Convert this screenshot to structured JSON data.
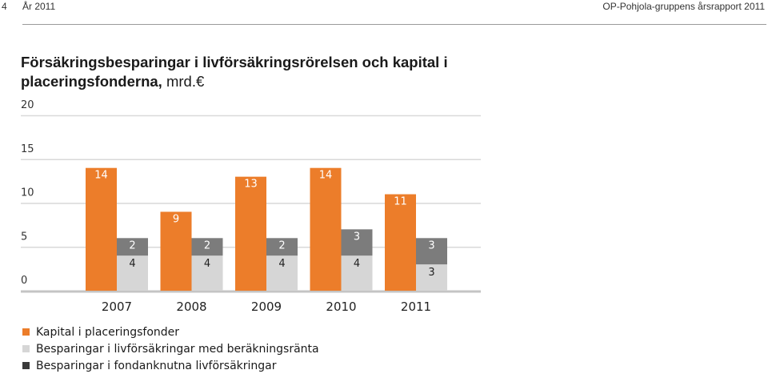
{
  "header": {
    "page_number": "4",
    "section": "År 2011",
    "report_title": "OP-Pohjola-gruppens årsrapport 2011"
  },
  "chart_title": {
    "main": "Försäkringsbesparingar i livförsäkringsrörelsen och kapital i placeringsfonderna,",
    "unit": "mrd.€"
  },
  "colors": {
    "orange": "#ec7d2a",
    "dark_grey": "#7c7c7c",
    "light_grey": "#d6d6d6",
    "legend_dark": "#3a3a3a",
    "axis_text": "#333333",
    "grid": "#d9d9d9"
  },
  "chart_data": {
    "type": "bar",
    "categories": [
      "2007",
      "2008",
      "2009",
      "2010",
      "2011"
    ],
    "series": [
      {
        "name": "Kapital i placeringsfonder",
        "values": [
          14,
          9,
          13,
          14,
          11
        ]
      },
      {
        "name": "Besparingar i livförsäkringar med beräkningsränta",
        "values": [
          4,
          4,
          4,
          4,
          3
        ]
      },
      {
        "name": "Besparingar i fondanknutna livförsäkringar",
        "values": [
          2,
          2,
          2,
          3,
          3
        ]
      }
    ],
    "stacking": "series 2 and 3 stacked (beräkningsränta at bottom, fondanknutna on top); series 1 as separate bar",
    "yticks": [
      0,
      5,
      10,
      15,
      20
    ],
    "ylim": [
      0,
      20
    ],
    "grid": true,
    "legend": "bottom-left"
  }
}
